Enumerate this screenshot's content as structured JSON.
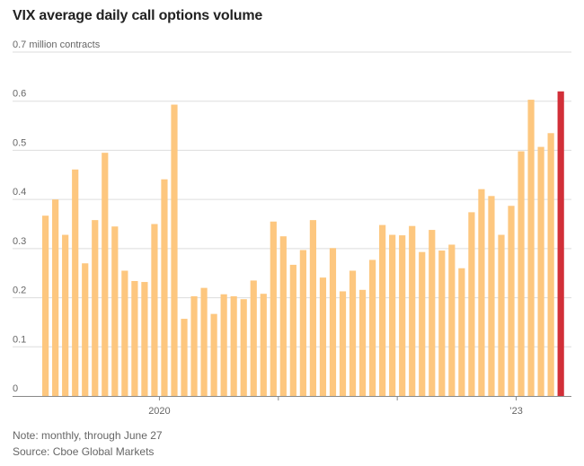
{
  "title": "VIX average daily call options volume",
  "note": "Note: monthly, through June 27",
  "source": "Source: Cboe Global Markets",
  "colors": {
    "bar": "#fdc77f",
    "highlight": "#d22f38",
    "grid": "#dddddd",
    "axis": "#888888"
  },
  "chart_data": {
    "type": "bar",
    "ylim": [
      0,
      0.7
    ],
    "y_ticks": [
      {
        "value": 0,
        "label": "0"
      },
      {
        "value": 0.1,
        "label": "0.1"
      },
      {
        "value": 0.2,
        "label": "0.2"
      },
      {
        "value": 0.3,
        "label": "0.3"
      },
      {
        "value": 0.4,
        "label": "0.4"
      },
      {
        "value": 0.5,
        "label": "0.5"
      },
      {
        "value": 0.6,
        "label": "0.6"
      },
      {
        "value": 0.7,
        "label": "0.7 million contracts"
      }
    ],
    "x_tick_labels": [
      {
        "index": 11.5,
        "label": "2020"
      },
      {
        "index": 47.5,
        "label": "’23"
      }
    ],
    "x_minor_ticks": [
      11.5,
      23.5,
      35.5,
      47.5
    ],
    "highlight_index": 52,
    "grid": true,
    "values": [
      0.367,
      0.4,
      0.328,
      0.461,
      0.27,
      0.358,
      0.495,
      0.345,
      0.255,
      0.234,
      0.232,
      0.35,
      0.441,
      0.593,
      0.157,
      0.203,
      0.22,
      0.167,
      0.207,
      0.203,
      0.197,
      0.235,
      0.208,
      0.355,
      0.325,
      0.267,
      0.297,
      0.358,
      0.241,
      0.301,
      0.213,
      0.255,
      0.216,
      0.277,
      0.348,
      0.328,
      0.327,
      0.346,
      0.293,
      0.338,
      0.296,
      0.308,
      0.26,
      0.374,
      0.421,
      0.407,
      0.328,
      0.387,
      0.498,
      0.603,
      0.507,
      0.535,
      0.62
    ]
  }
}
